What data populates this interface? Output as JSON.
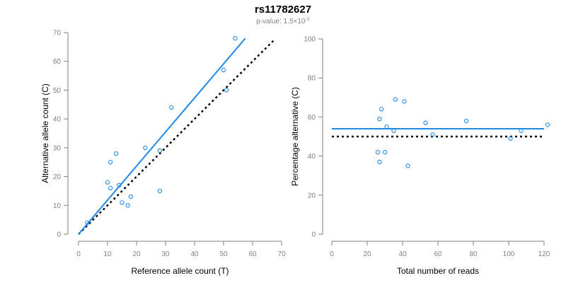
{
  "title": "rs11782627",
  "subtitle": {
    "prefix": "p-value: 1.5×10",
    "exponent": "-2"
  },
  "colors": {
    "points": "#1e88e5",
    "fit_line": "#1e88e5",
    "reference_line": "#000000",
    "axis": "#808080"
  },
  "chart_data": [
    {
      "type": "scatter",
      "xlabel": "Reference allele count (T)",
      "ylabel": "Alternative allele count (C)",
      "xlim": [
        0,
        70
      ],
      "ylim": [
        0,
        70
      ],
      "xticks": [
        0,
        10,
        20,
        30,
        40,
        50,
        60,
        70
      ],
      "yticks": [
        0,
        10,
        20,
        30,
        40,
        50,
        60,
        70
      ],
      "grid": false,
      "points": [
        {
          "x": 3,
          "y": 4
        },
        {
          "x": 10,
          "y": 18
        },
        {
          "x": 11,
          "y": 16
        },
        {
          "x": 11,
          "y": 25
        },
        {
          "x": 13,
          "y": 28
        },
        {
          "x": 14,
          "y": 17
        },
        {
          "x": 15,
          "y": 11
        },
        {
          "x": 17,
          "y": 10
        },
        {
          "x": 18,
          "y": 13
        },
        {
          "x": 23,
          "y": 30
        },
        {
          "x": 28,
          "y": 15
        },
        {
          "x": 28,
          "y": 29
        },
        {
          "x": 32,
          "y": 44
        },
        {
          "x": 50,
          "y": 57
        },
        {
          "x": 51,
          "y": 50
        },
        {
          "x": 54,
          "y": 68
        }
      ],
      "fit_line": {
        "style": "solid",
        "x": [
          0,
          57.5
        ],
        "y": [
          0,
          68
        ]
      },
      "reference_line": {
        "style": "dotted",
        "x": [
          0,
          67.5
        ],
        "y": [
          0,
          67.5
        ]
      }
    },
    {
      "type": "scatter",
      "xlabel": "Total number of reads",
      "ylabel": "Percentage alternative (C)",
      "xlim": [
        0,
        120
      ],
      "ylim": [
        0,
        100
      ],
      "xticks": [
        0,
        20,
        40,
        60,
        80,
        100,
        120
      ],
      "yticks": [
        0,
        20,
        40,
        60,
        80,
        100
      ],
      "grid": false,
      "points": [
        {
          "x": 26,
          "y": 42
        },
        {
          "x": 27,
          "y": 37
        },
        {
          "x": 27,
          "y": 59
        },
        {
          "x": 28,
          "y": 64
        },
        {
          "x": 30,
          "y": 42
        },
        {
          "x": 31,
          "y": 55
        },
        {
          "x": 35,
          "y": 53
        },
        {
          "x": 36,
          "y": 69
        },
        {
          "x": 41,
          "y": 68
        },
        {
          "x": 43,
          "y": 35
        },
        {
          "x": 53,
          "y": 57
        },
        {
          "x": 57,
          "y": 51
        },
        {
          "x": 76,
          "y": 58
        },
        {
          "x": 101,
          "y": 49
        },
        {
          "x": 107,
          "y": 53
        },
        {
          "x": 122,
          "y": 56
        }
      ],
      "fit_line": {
        "style": "solid",
        "x": [
          0,
          120
        ],
        "y": [
          54,
          54
        ]
      },
      "reference_line": {
        "style": "dotted",
        "x": [
          0,
          120
        ],
        "y": [
          50,
          50
        ]
      }
    }
  ]
}
